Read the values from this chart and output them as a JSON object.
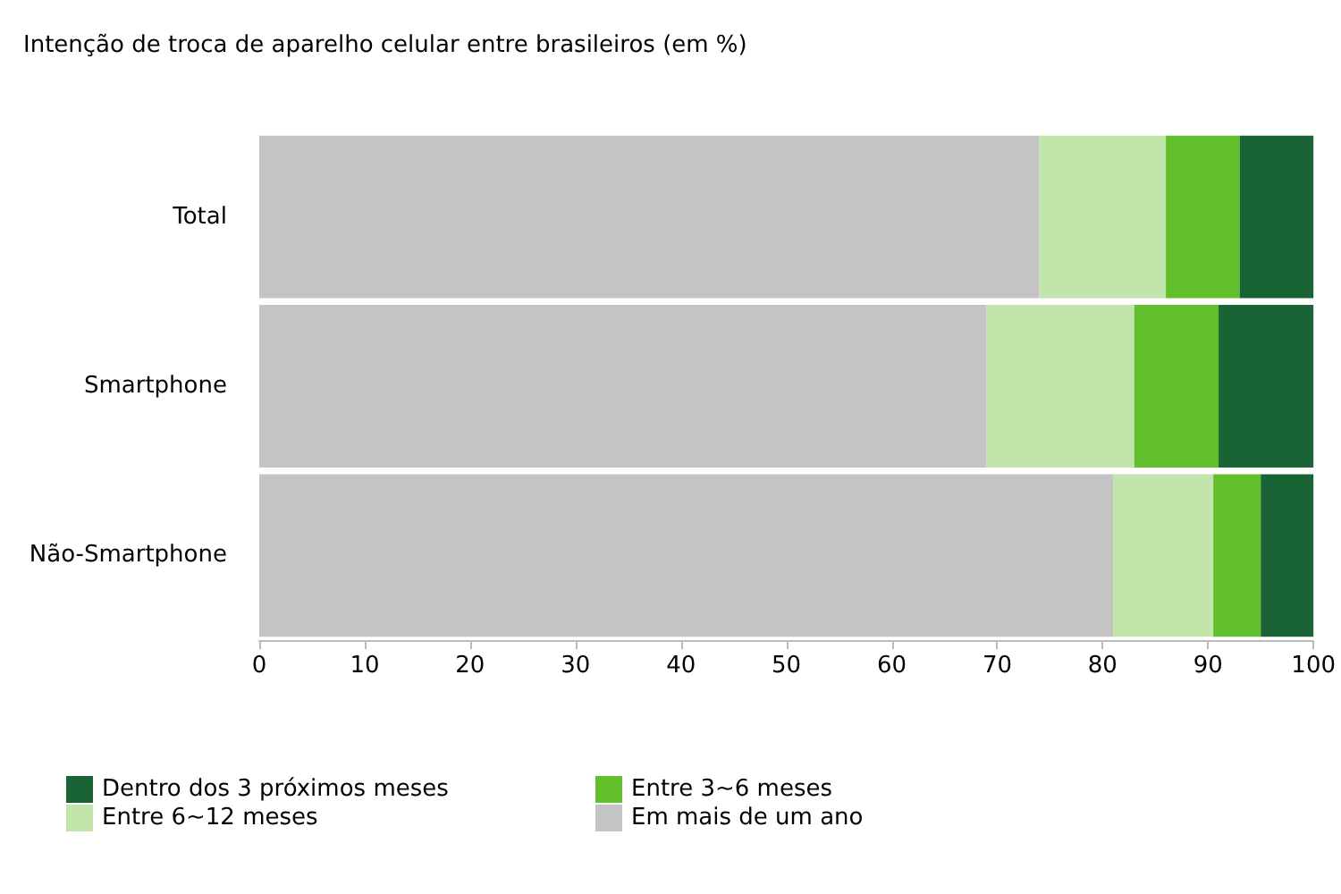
{
  "chart_data": {
    "type": "bar",
    "orientation": "horizontal",
    "stacked": true,
    "title": "Intenção de troca de aparelho celular entre brasileiros (em %)",
    "categories": [
      "Total",
      "Smartphone",
      "Não-Smartphone"
    ],
    "series": [
      {
        "name": "Em mais de um ano",
        "color": "#c4c4c4",
        "values": [
          74,
          69,
          81
        ]
      },
      {
        "name": "Entre 6~12 meses",
        "color": "#c2e5ab",
        "values": [
          12,
          14,
          9.5
        ]
      },
      {
        "name": "Entre 3~6 meses",
        "color": "#62be2a",
        "values": [
          7,
          8,
          4.5
        ]
      },
      {
        "name": "Dentro dos 3 próximos meses",
        "color": "#1a6334",
        "values": [
          7,
          9,
          5
        ]
      }
    ],
    "xlim": [
      0,
      100
    ],
    "xticks": [
      0,
      10,
      20,
      30,
      40,
      50,
      60,
      70,
      80,
      90,
      100
    ],
    "grid": false,
    "legend": "bottom"
  }
}
